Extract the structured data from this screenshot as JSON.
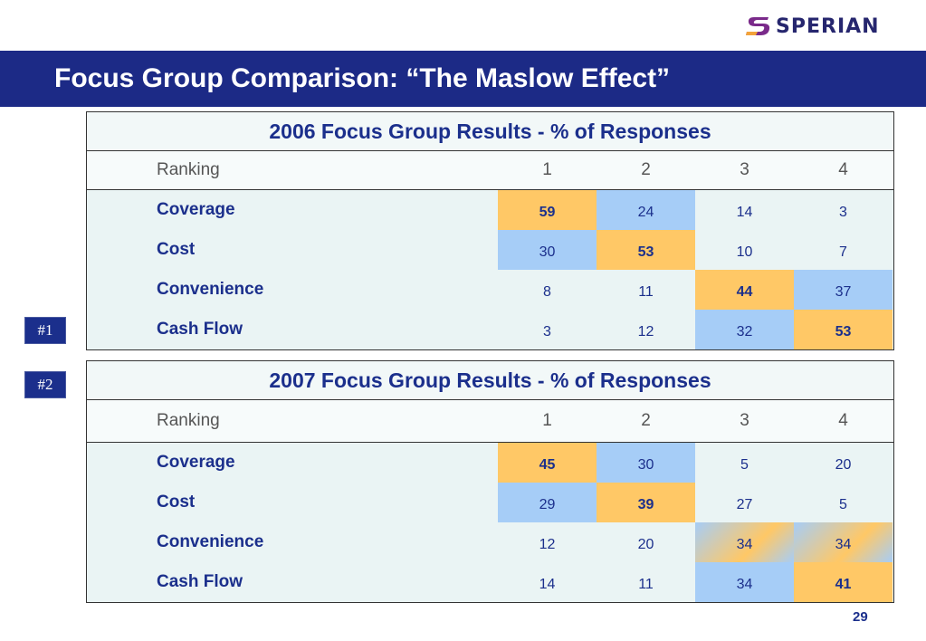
{
  "logo": {
    "text": "SPERIAN",
    "icon": "sperian-s-logo-icon",
    "colors": [
      "#7a2a8a",
      "#f3a33a"
    ]
  },
  "page_title": "Focus Group Comparison:  “The Maslow Effect”",
  "badges": [
    "#1",
    "#2"
  ],
  "page_number": "29",
  "colors": {
    "title_bar": "#1c2a86",
    "text_blue": "#1b2f8c",
    "highlight_orange": "#ffc866",
    "highlight_blue": "#a6cdf7"
  },
  "tables": [
    {
      "title": "2006 Focus Group Results - % of Responses",
      "ranking_label": "Ranking",
      "columns": [
        "1",
        "2",
        "3",
        "4"
      ],
      "rows": [
        {
          "label": "Coverage",
          "values": [
            "59",
            "24",
            "14",
            "3"
          ]
        },
        {
          "label": "Cost",
          "values": [
            "30",
            "53",
            "10",
            "7"
          ]
        },
        {
          "label": "Convenience",
          "values": [
            "8",
            "11",
            "44",
            "37"
          ]
        },
        {
          "label": "Cash Flow",
          "values": [
            "3",
            "12",
            "32",
            "53"
          ]
        }
      ]
    },
    {
      "title": "2007 Focus Group Results - % of Responses",
      "ranking_label": "Ranking",
      "columns": [
        "1",
        "2",
        "3",
        "4"
      ],
      "rows": [
        {
          "label": "Coverage",
          "values": [
            "45",
            "30",
            "5",
            "20"
          ]
        },
        {
          "label": "Cost",
          "values": [
            "29",
            "39",
            "27",
            "5"
          ]
        },
        {
          "label": "Convenience",
          "values": [
            "12",
            "20",
            "34",
            "34"
          ]
        },
        {
          "label": "Cash Flow",
          "values": [
            "14",
            "11",
            "34",
            "41"
          ]
        }
      ]
    }
  ]
}
